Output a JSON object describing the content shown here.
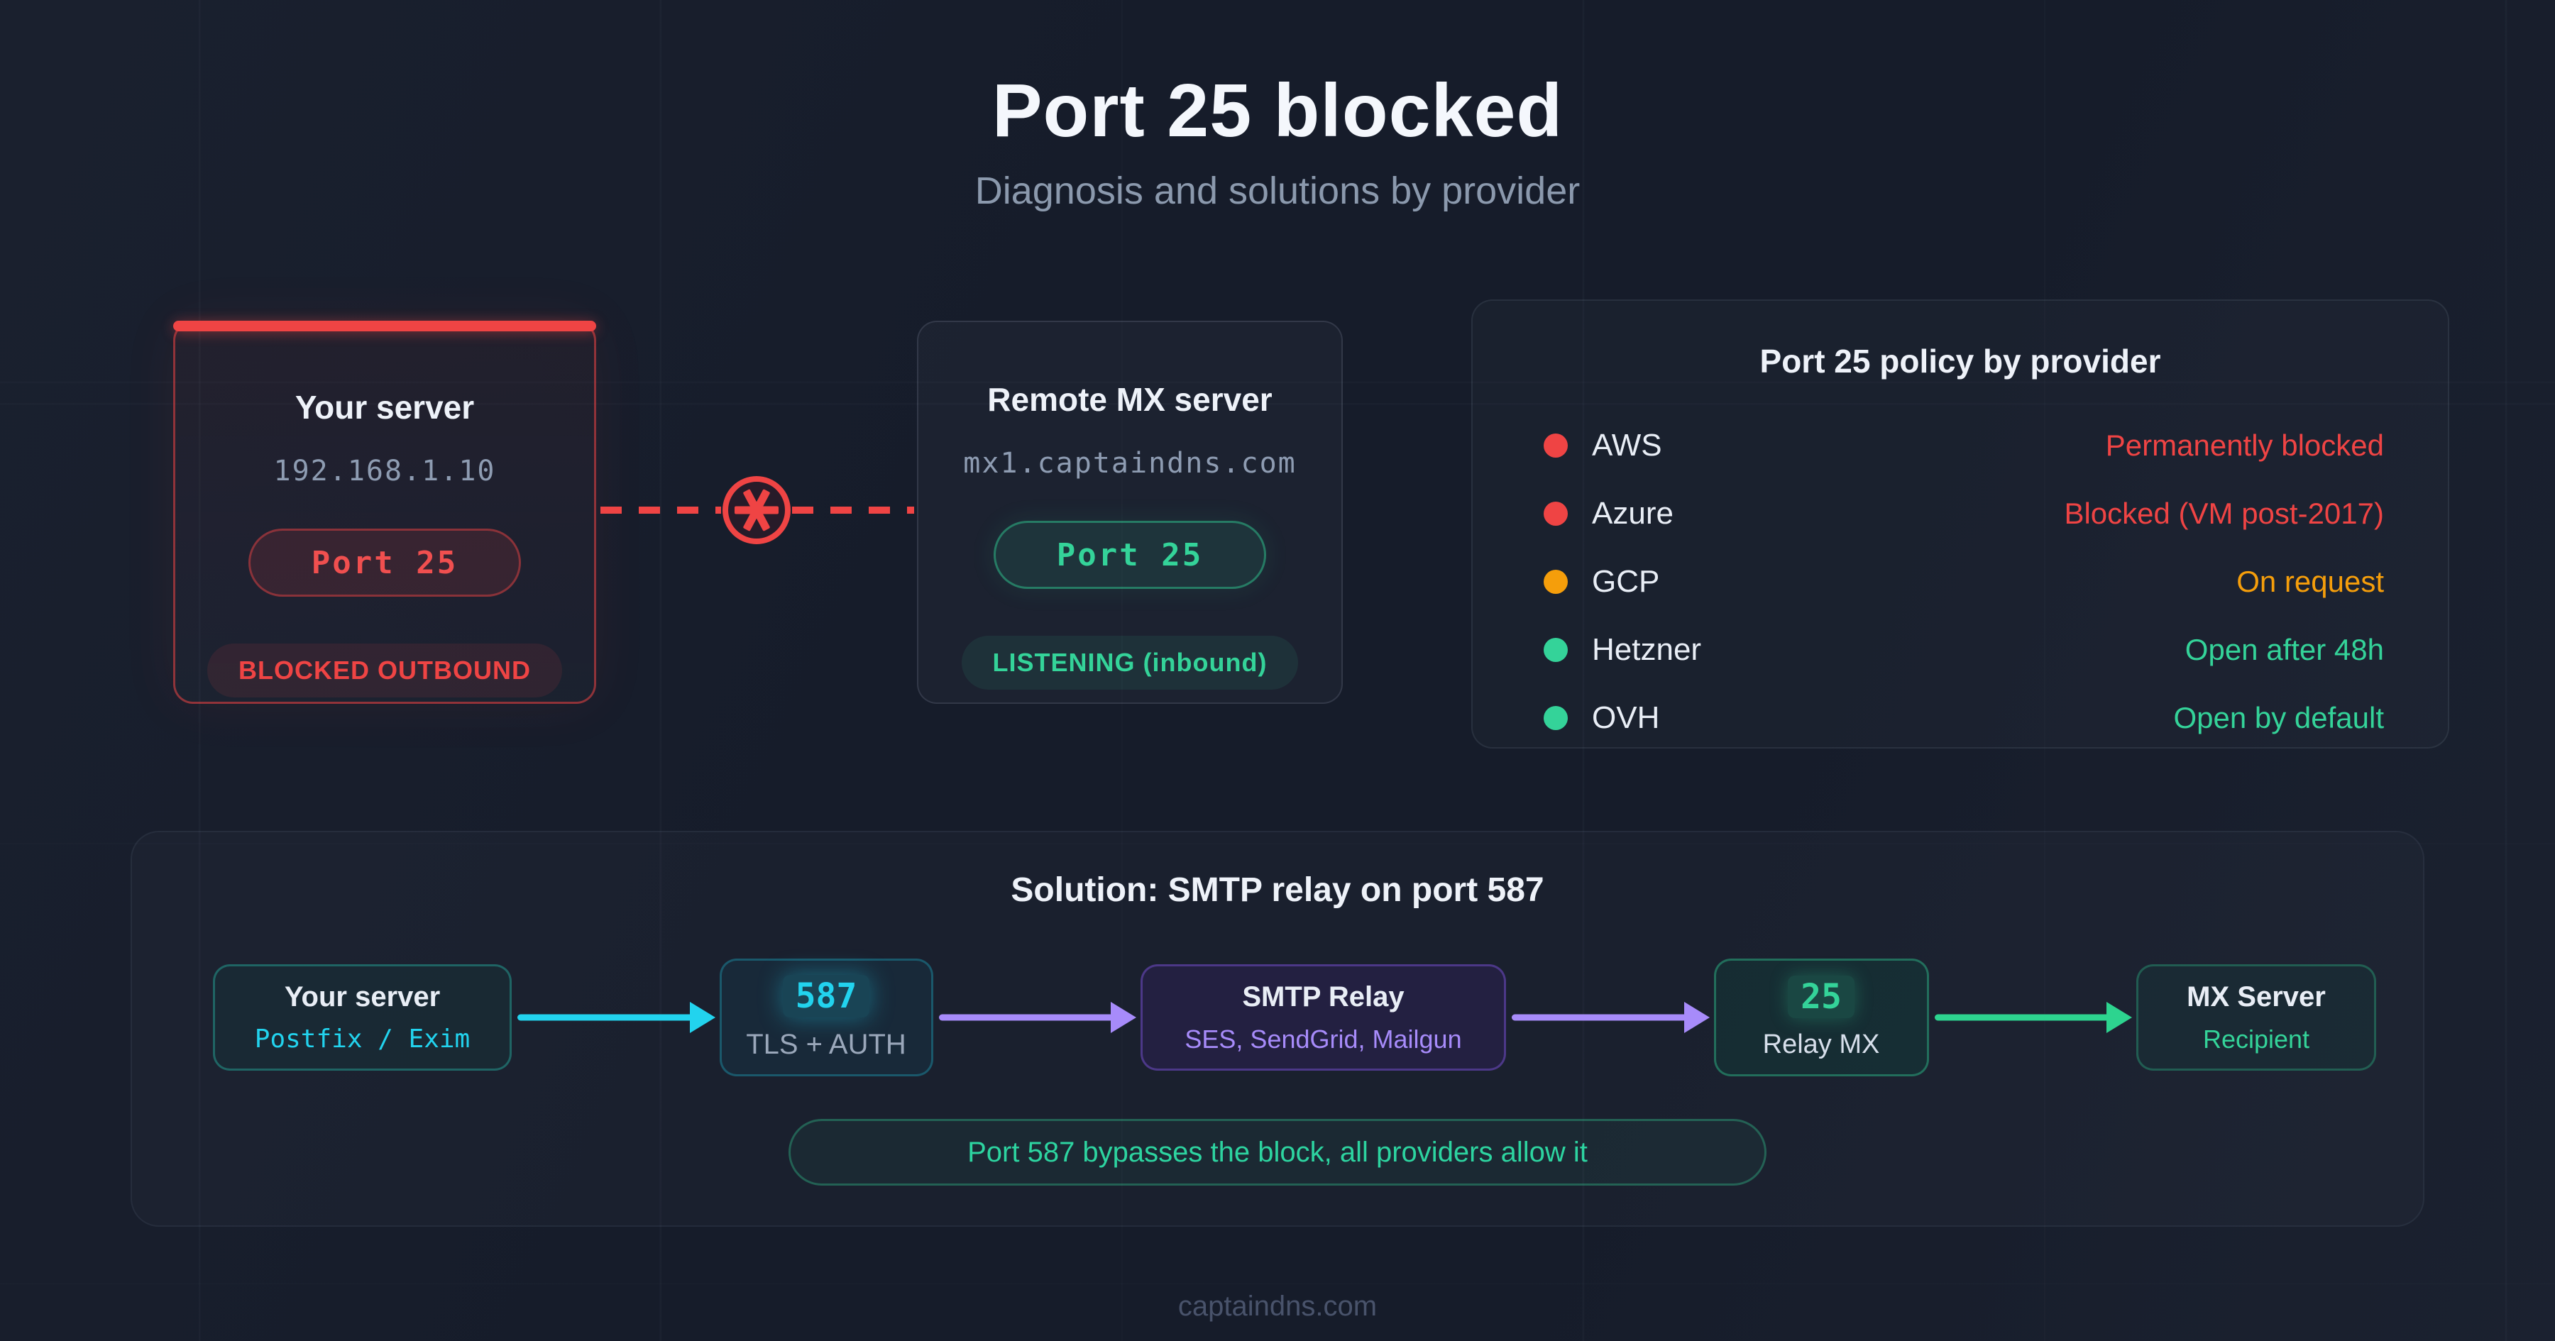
{
  "page": {
    "title": "Port 25 blocked",
    "subtitle": "Diagnosis and solutions by provider",
    "footer": "captaindns.com"
  },
  "diagnosis": {
    "your_server": {
      "title": "Your server",
      "ip": "192.168.1.10",
      "port": "Port 25",
      "status": "BLOCKED OUTBOUND"
    },
    "connection": {
      "icon": "blocked-connection-icon",
      "style": "red-dashed-line-with-crossed-circle"
    },
    "remote_server": {
      "title": "Remote MX server",
      "host": "mx1.captaindns.com",
      "port": "Port 25",
      "status": "LISTENING (inbound)"
    }
  },
  "policy": {
    "title": "Port 25 policy by provider",
    "rows": [
      {
        "provider": "AWS",
        "status": "Permanently blocked",
        "level": "blocked",
        "dot_color": "#ef4444",
        "status_color": "#ef4444"
      },
      {
        "provider": "Azure",
        "status": "Blocked (VM post-2017)",
        "level": "blocked",
        "dot_color": "#ef4444",
        "status_color": "#ef4444"
      },
      {
        "provider": "GCP",
        "status": "On request",
        "level": "conditional",
        "dot_color": "#f59e0b",
        "status_color": "#f59e0b"
      },
      {
        "provider": "Hetzner",
        "status": "Open after 48h",
        "level": "open",
        "dot_color": "#34d399",
        "status_color": "#34d399"
      },
      {
        "provider": "OVH",
        "status": "Open by default",
        "level": "open",
        "dot_color": "#34d399",
        "status_color": "#34d399"
      }
    ]
  },
  "solution": {
    "title": "Solution: SMTP relay on port 587",
    "steps": [
      {
        "line1": "Your server",
        "line2": "Postfix / Exim"
      },
      {
        "line1": "587",
        "line2": "TLS + AUTH"
      },
      {
        "line1": "SMTP Relay",
        "line2": "SES, SendGrid, Mailgun"
      },
      {
        "line1": "25",
        "line2": "Relay MX"
      },
      {
        "line1": "MX Server",
        "line2": "Recipient"
      }
    ],
    "arrow_colors": [
      "#22d3ee",
      "#a78bfa",
      "#a78bfa",
      "#2dd48f"
    ],
    "note": "Port 587 bypasses the block, all providers allow it"
  },
  "colors": {
    "background": "#161c2a",
    "accent_red": "#ef4444",
    "accent_green": "#34d399",
    "accent_orange": "#f59e0b",
    "accent_cyan": "#22d3ee",
    "accent_purple": "#a78bfa"
  }
}
